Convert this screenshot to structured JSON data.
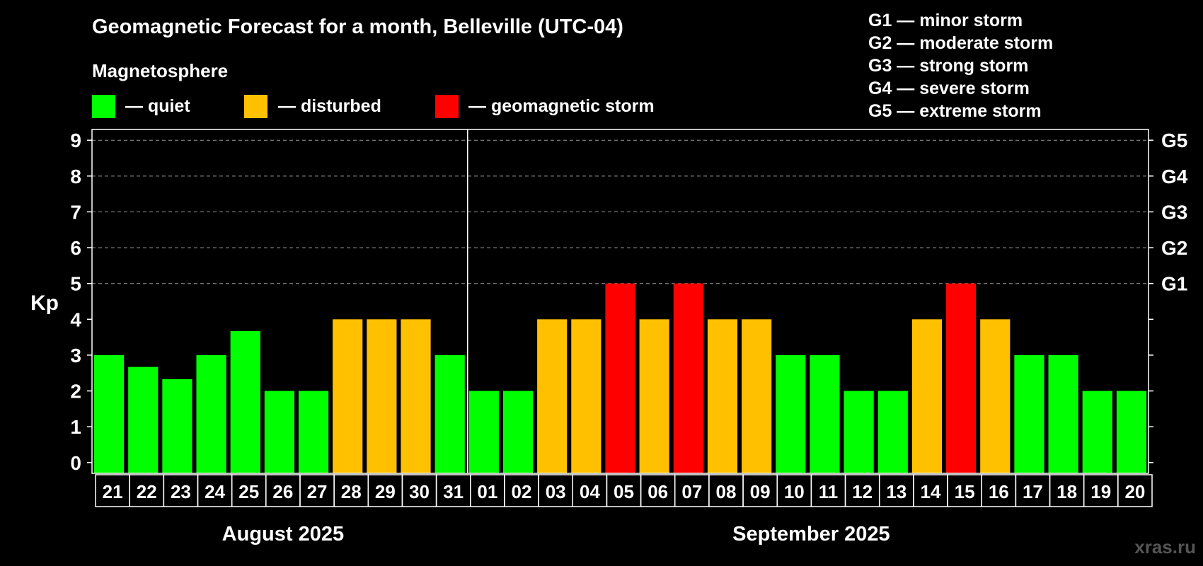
{
  "title": "Geomagnetic Forecast for a month, Belleville (UTC-04)",
  "legend": {
    "heading": "Magnetosphere",
    "items": [
      {
        "key": "quiet",
        "label": "— quiet",
        "color": "#00FF00"
      },
      {
        "key": "disturbed",
        "label": "— disturbed",
        "color": "#FFC000"
      },
      {
        "key": "storm",
        "label": "— geomagnetic storm",
        "color": "#FF0000"
      }
    ]
  },
  "storm_scale": [
    "G1 — minor storm",
    "G2 — moderate storm",
    "G3 — strong storm",
    "G4 — severe storm",
    "G5 — extreme storm"
  ],
  "watermark": "xras.ru",
  "chart_data": {
    "type": "bar",
    "ylabel": "Kp",
    "ylim": [
      -0.3,
      9.3
    ],
    "yticks": [
      0,
      1,
      2,
      3,
      4,
      5,
      6,
      7,
      8,
      9
    ],
    "grid": "dashed horizontal at Kp 5-9",
    "right_axis_labels": [
      {
        "kp": 5,
        "label": "G1"
      },
      {
        "kp": 6,
        "label": "G2"
      },
      {
        "kp": 7,
        "label": "G3"
      },
      {
        "kp": 8,
        "label": "G4"
      },
      {
        "kp": 9,
        "label": "G5"
      }
    ],
    "months": [
      {
        "label": "August 2025",
        "start": 0,
        "end": 10
      },
      {
        "label": "September 2025",
        "start": 11,
        "end": 30
      }
    ],
    "categories": [
      "21",
      "22",
      "23",
      "24",
      "25",
      "26",
      "27",
      "28",
      "29",
      "30",
      "31",
      "01",
      "02",
      "03",
      "04",
      "05",
      "06",
      "07",
      "08",
      "09",
      "10",
      "11",
      "12",
      "13",
      "14",
      "15",
      "16",
      "17",
      "18",
      "19",
      "20"
    ],
    "values": [
      3,
      2.67,
      2.33,
      3,
      3.67,
      2,
      2,
      4,
      4,
      4,
      3,
      2,
      2,
      4,
      4,
      5,
      4,
      5,
      4,
      4,
      3,
      3,
      2,
      2,
      4,
      5,
      4,
      3,
      3,
      2,
      2
    ],
    "levels": [
      "quiet",
      "quiet",
      "quiet",
      "quiet",
      "quiet",
      "quiet",
      "quiet",
      "disturbed",
      "disturbed",
      "disturbed",
      "quiet",
      "quiet",
      "quiet",
      "disturbed",
      "disturbed",
      "storm",
      "disturbed",
      "storm",
      "disturbed",
      "disturbed",
      "quiet",
      "quiet",
      "quiet",
      "quiet",
      "disturbed",
      "storm",
      "disturbed",
      "quiet",
      "quiet",
      "quiet",
      "quiet"
    ]
  }
}
